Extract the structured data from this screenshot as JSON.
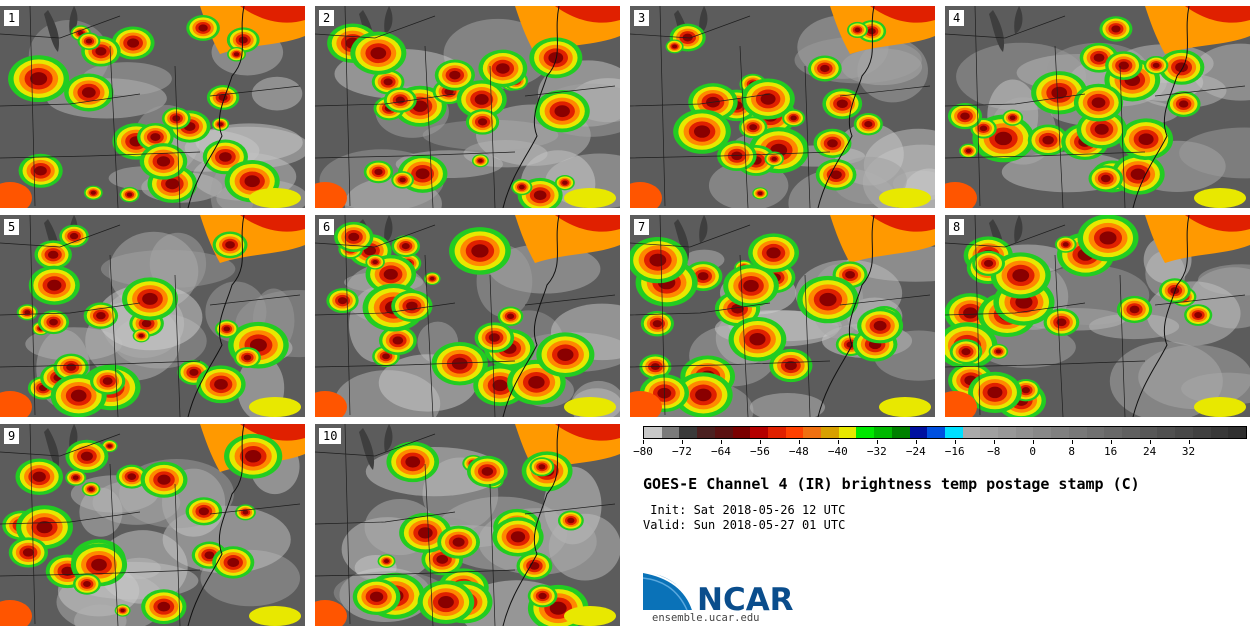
{
  "panels": [
    {
      "label": "1",
      "seed": 11
    },
    {
      "label": "2",
      "seed": 23
    },
    {
      "label": "3",
      "seed": 37
    },
    {
      "label": "4",
      "seed": 41
    },
    {
      "label": "5",
      "seed": 53
    },
    {
      "label": "6",
      "seed": 67
    },
    {
      "label": "7",
      "seed": 71
    },
    {
      "label": "8",
      "seed": 83
    },
    {
      "label": "9",
      "seed": 97
    },
    {
      "label": "10",
      "seed": 109
    }
  ],
  "colorbar": {
    "colors": [
      "#c8c8c8",
      "#7a7a7a",
      "#3a3a3a",
      "#4a2020",
      "#5a1010",
      "#7a0000",
      "#b40000",
      "#e02000",
      "#ff4000",
      "#f07010",
      "#d8a000",
      "#e8e800",
      "#00e800",
      "#00b800",
      "#008000",
      "#0010a0",
      "#0050e0",
      "#00e0ff",
      "#aaaaaa",
      "#a0a0a0",
      "#989898",
      "#909090",
      "#888888",
      "#808080",
      "#787878",
      "#707070",
      "#686868",
      "#606060",
      "#585858",
      "#505050",
      "#484848",
      "#404040",
      "#383838",
      "#303030"
    ],
    "min": -80,
    "max": 44,
    "tick_values": [
      -80,
      -72,
      -64,
      -56,
      -48,
      -40,
      -32,
      -24,
      -16,
      -8,
      0,
      8,
      16,
      24,
      32
    ],
    "tick_labels": [
      "−80",
      "−72",
      "−64",
      "−56",
      "−48",
      "−40",
      "−32",
      "−24",
      "−16",
      "−8",
      "0",
      "8",
      "16",
      "24",
      "32"
    ]
  },
  "title": "GOES-E Channel 4 (IR) brightness temp postage stamp (C)",
  "init": " Init: Sat 2018-05-26 12 UTC",
  "valid": "Valid: Sun 2018-05-27 01 UTC",
  "logo": {
    "text": "NCAR",
    "url": "ensemble.ucar.edu",
    "color": "#0a4d8c"
  }
}
